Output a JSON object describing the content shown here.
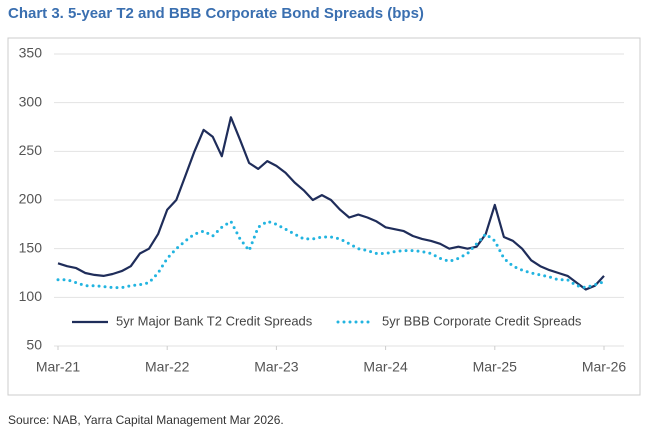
{
  "chart_data": {
    "type": "line",
    "title": "Chart 3. 5-year T2 and BBB Corporate Bond Spreads (bps)",
    "source": "Source: NAB, Yarra Capital Management Mar 2026.",
    "x": [
      "2021-03",
      "2021-04",
      "2021-05",
      "2021-06",
      "2021-07",
      "2021-08",
      "2021-09",
      "2021-10",
      "2021-11",
      "2021-12",
      "2022-01",
      "2022-02",
      "2022-03",
      "2022-04",
      "2022-05",
      "2022-06",
      "2022-07",
      "2022-08",
      "2022-09",
      "2022-10",
      "2022-11",
      "2022-12",
      "2023-01",
      "2023-02",
      "2023-03",
      "2023-04",
      "2023-05",
      "2023-06",
      "2023-07",
      "2023-08",
      "2023-09",
      "2023-10",
      "2023-11",
      "2023-12",
      "2024-01",
      "2024-02",
      "2024-03",
      "2024-04",
      "2024-05",
      "2024-06",
      "2024-07",
      "2024-08",
      "2024-09",
      "2024-10",
      "2024-11",
      "2024-12",
      "2025-01",
      "2025-02",
      "2025-03",
      "2025-04",
      "2025-05",
      "2025-06",
      "2025-07",
      "2025-08",
      "2025-09",
      "2025-10",
      "2025-11",
      "2025-12",
      "2026-01",
      "2026-02",
      "2026-03"
    ],
    "series": [
      {
        "name": "5yr Major Bank T2 Credit Spreads",
        "color": "#1f2d5a",
        "dash": "solid",
        "values": [
          135,
          132,
          130,
          125,
          123,
          122,
          124,
          127,
          132,
          145,
          150,
          165,
          190,
          200,
          225,
          250,
          272,
          265,
          245,
          285,
          262,
          238,
          232,
          240,
          235,
          228,
          218,
          210,
          200,
          205,
          200,
          190,
          182,
          185,
          182,
          178,
          172,
          170,
          168,
          163,
          160,
          158,
          155,
          150,
          152,
          150,
          152,
          165,
          195,
          162,
          158,
          150,
          138,
          132,
          128,
          125,
          122,
          115,
          108,
          112,
          122
        ]
      },
      {
        "name": "5yr BBB Corporate Credit Spreads",
        "color": "#22b4e0",
        "dash": "dotted",
        "values": [
          118,
          118,
          115,
          112,
          112,
          111,
          110,
          110,
          112,
          113,
          115,
          125,
          140,
          150,
          158,
          165,
          168,
          163,
          172,
          178,
          160,
          148,
          172,
          178,
          175,
          170,
          165,
          160,
          160,
          162,
          162,
          160,
          155,
          150,
          148,
          145,
          145,
          147,
          148,
          148,
          147,
          145,
          140,
          137,
          140,
          145,
          155,
          165,
          158,
          140,
          132,
          128,
          125,
          123,
          121,
          118,
          118,
          112,
          110,
          113,
          116
        ]
      }
    ],
    "xlim": [
      "2021-03",
      "2026-03"
    ],
    "xticks": [
      {
        "value": "2021-03",
        "label": "Mar-21"
      },
      {
        "value": "2022-03",
        "label": "Mar-22"
      },
      {
        "value": "2023-03",
        "label": "Mar-23"
      },
      {
        "value": "2024-03",
        "label": "Mar-24"
      },
      {
        "value": "2025-03",
        "label": "Mar-25"
      },
      {
        "value": "2026-03",
        "label": "Mar-26"
      }
    ],
    "ylim": [
      50,
      350
    ],
    "yticks": [
      50,
      100,
      150,
      200,
      250,
      300,
      350
    ],
    "grid": true,
    "legend": "bottom"
  }
}
